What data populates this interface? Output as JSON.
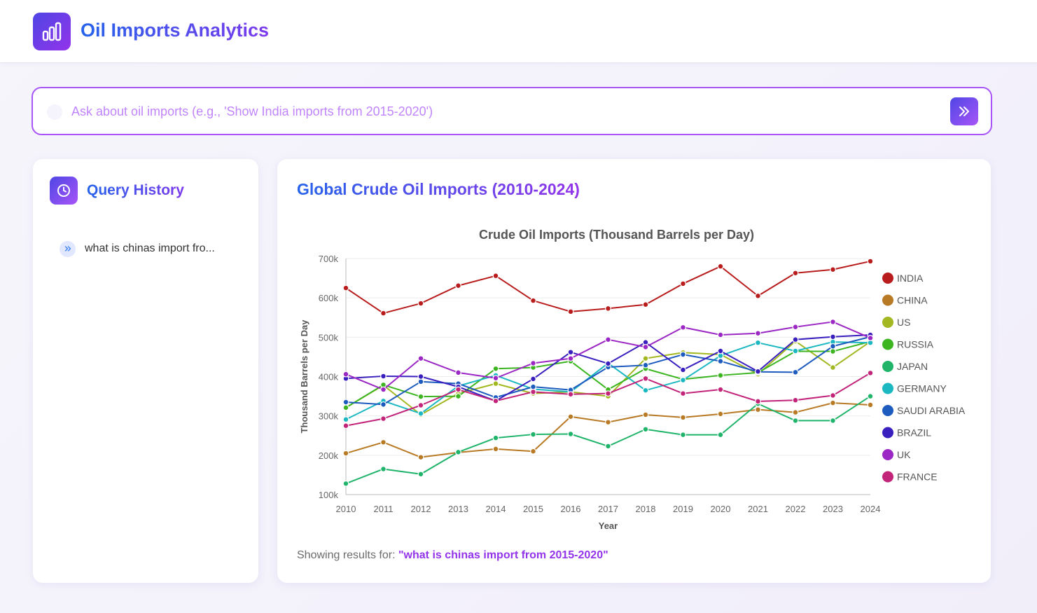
{
  "app": {
    "title": "Oil Imports Analytics",
    "logo_icon": "bar-chart-icon"
  },
  "search": {
    "placeholder": "Ask about oil imports (e.g., 'Show India imports from 2015-2020')",
    "value": "",
    "submit_icon": "double-chevron-right-icon"
  },
  "history": {
    "title": "Query History",
    "icon": "clock-icon",
    "items": [
      {
        "label": "what is chinas import fro..."
      }
    ]
  },
  "panel": {
    "title": "Global Crude Oil Imports (2010-2024)",
    "results_prefix": "Showing results for:",
    "results_query": "\"what is chinas import from 2015-2020\""
  },
  "colors": {
    "accent_start": "#4f46e5",
    "accent_end": "#a855f7"
  },
  "chart_data": {
    "type": "line",
    "title": "Crude Oil Imports (Thousand Barrels per Day)",
    "xlabel": "Year",
    "ylabel": "Thousand Barrels per Day",
    "ylim": [
      100,
      700
    ],
    "yticks": [
      100,
      200,
      300,
      400,
      500,
      600,
      700
    ],
    "ytick_labels": [
      "100k",
      "200k",
      "300k",
      "400k",
      "500k",
      "600k",
      "700k"
    ],
    "grid": true,
    "legend_position": "right",
    "x": [
      2010,
      2011,
      2012,
      2013,
      2014,
      2015,
      2016,
      2017,
      2018,
      2019,
      2020,
      2021,
      2022,
      2023,
      2024
    ],
    "series": [
      {
        "name": "INDIA",
        "color": "#b91c1c",
        "values": [
          625,
          561,
          586,
          631,
          656,
          593,
          565,
          573,
          583,
          636,
          680,
          605,
          663,
          672,
          693
        ]
      },
      {
        "name": "CHINA",
        "color": "#b87a24",
        "values": [
          205,
          233,
          195,
          207,
          216,
          210,
          298,
          284,
          303,
          296,
          305,
          316,
          309,
          333,
          328
        ]
      },
      {
        "name": "US",
        "color": "#a3b820",
        "values": [
          321,
          378,
          303,
          357,
          382,
          357,
          361,
          350,
          446,
          461,
          456,
          406,
          490,
          423,
          489
        ]
      },
      {
        "name": "RUSSIA",
        "color": "#3cb521",
        "values": [
          321,
          379,
          349,
          350,
          420,
          423,
          439,
          367,
          420,
          393,
          403,
          410,
          464,
          464,
          489
        ]
      },
      {
        "name": "JAPAN",
        "color": "#1fb46a",
        "values": [
          128,
          165,
          152,
          208,
          244,
          253,
          254,
          223,
          266,
          252,
          252,
          331,
          288,
          288,
          350
        ]
      },
      {
        "name": "GERMANY",
        "color": "#1cb8c2",
        "values": [
          291,
          338,
          306,
          376,
          403,
          368,
          361,
          434,
          365,
          391,
          453,
          486,
          465,
          488,
          486
        ]
      },
      {
        "name": "SAUDI ARABIA",
        "color": "#1d5bbf",
        "values": [
          335,
          329,
          387,
          382,
          347,
          374,
          366,
          424,
          429,
          456,
          439,
          412,
          411,
          477,
          501
        ]
      },
      {
        "name": "BRAZIL",
        "color": "#3a1fbf",
        "values": [
          395,
          401,
          400,
          374,
          338,
          394,
          462,
          433,
          487,
          417,
          465,
          413,
          494,
          501,
          506
        ]
      },
      {
        "name": "UK",
        "color": "#9b27c4",
        "values": [
          406,
          367,
          446,
          410,
          396,
          434,
          446,
          494,
          475,
          525,
          506,
          510,
          526,
          539,
          498
        ]
      },
      {
        "name": "FRANCE",
        "color": "#c2247a",
        "values": [
          275,
          293,
          327,
          367,
          338,
          361,
          355,
          357,
          395,
          357,
          367,
          337,
          340,
          352,
          409
        ]
      }
    ]
  }
}
